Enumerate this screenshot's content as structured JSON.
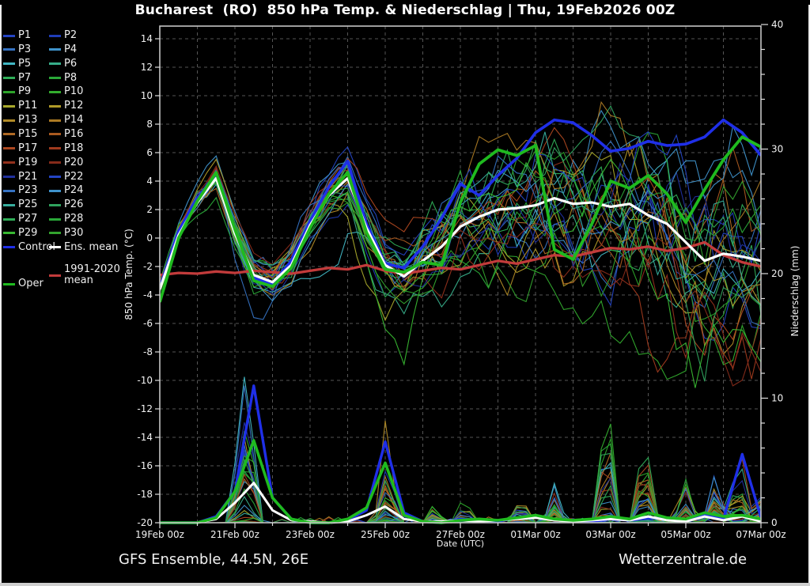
{
  "title": "Bucharest  (RO)  850 hPa Temp. & Niederschlag | Thu, 19Feb2026 00Z",
  "footer": {
    "left": "GFS Ensemble, 44.5N, 26E",
    "right": "Wetterzentrale.de"
  },
  "colors": {
    "background": "#000000",
    "frame": "#c4c4c4",
    "grid": "#555555",
    "tick_text": "#f2f2f2",
    "control": "#1f2fe8",
    "ens_mean": "#ffffff",
    "climate_mean": "#c23b3b",
    "oper": "#1fba1f"
  },
  "legend": {
    "control_label": "Control",
    "ens_mean_label": "Ens. mean",
    "climate_label_line1": "1991-2020",
    "climate_label_line2": "mean",
    "oper_label": "Oper"
  },
  "chart_data": {
    "type": "line",
    "title": "Bucharest (RO) 850 hPa Temp. & Niederschlag | Thu, 19Feb2026 00Z",
    "x_axis": {
      "label": "Date (UTC)",
      "tick_labels": [
        "19Feb 00z",
        "21Feb 00z",
        "23Feb 00z",
        "25Feb 00z",
        "27Feb 00z",
        "01Mar 00z",
        "03Mar 00z",
        "05Mar 00z",
        "07Mar 00z"
      ],
      "range_days": [
        0,
        16
      ],
      "gridline_every_days": 1,
      "labeled_tick_every_days": 2
    },
    "y_left": {
      "label": "850 hPa Temp. (°C)",
      "range": [
        -20,
        15
      ],
      "ticks": [
        14,
        12,
        10,
        8,
        6,
        4,
        2,
        0,
        -2,
        -4,
        -6,
        -8,
        -10,
        -12,
        -14,
        -16,
        -18,
        -20
      ]
    },
    "y_right": {
      "label": "Niederschlag (mm)",
      "range": [
        0,
        40
      ],
      "ticks": [
        40,
        30,
        20,
        10,
        0
      ]
    },
    "grid": true,
    "legend_position": "left",
    "sample_interval_hours": 12,
    "series": [
      {
        "name": "Control",
        "axis": "temp",
        "color": "#1f2fe8",
        "width": 3.6,
        "values": [
          -3.5,
          0.5,
          2.8,
          4.5,
          0.5,
          -2.8,
          -3.2,
          -1.6,
          1.2,
          3.6,
          5.4,
          1.0,
          -1.8,
          -2.1,
          -0.6,
          1.4,
          3.8,
          3.0,
          4.4,
          5.6,
          7.4,
          8.3,
          8.1,
          7.2,
          6.1,
          6.3,
          6.8,
          6.5,
          6.6,
          7.1,
          8.3,
          7.4,
          5.8
        ]
      },
      {
        "name": "Ens. mean",
        "axis": "temp",
        "color": "#ffffff",
        "width": 3.2,
        "values": [
          -3.6,
          0.2,
          2.5,
          4.2,
          0.3,
          -2.6,
          -3.1,
          -1.9,
          0.9,
          3.0,
          4.2,
          0.7,
          -1.9,
          -2.7,
          -1.6,
          -0.6,
          0.8,
          1.5,
          2.0,
          2.1,
          2.3,
          2.8,
          2.4,
          2.5,
          2.2,
          2.4,
          1.6,
          1.0,
          -0.3,
          -1.6,
          -1.1,
          -1.3,
          -1.6
        ]
      },
      {
        "name": "1991-2020 mean",
        "axis": "temp",
        "color": "#c23b3b",
        "width": 3.3,
        "values": [
          -2.6,
          -2.45,
          -2.5,
          -2.35,
          -2.45,
          -2.3,
          -2.4,
          -2.5,
          -2.3,
          -2.1,
          -2.2,
          -1.9,
          -2.3,
          -2.5,
          -2.3,
          -2.1,
          -2.2,
          -1.9,
          -1.6,
          -1.8,
          -1.5,
          -1.2,
          -1.3,
          -1.0,
          -0.7,
          -0.8,
          -0.6,
          -0.9,
          -0.7,
          -0.3,
          -1.2,
          -1.7,
          -2.0
        ]
      },
      {
        "name": "Oper",
        "axis": "temp",
        "color": "#1fba1f",
        "width": 3.8,
        "values": [
          -4.5,
          0.0,
          2.6,
          4.6,
          0.6,
          -3.0,
          -3.4,
          -2.1,
          0.7,
          3.1,
          4.6,
          0.4,
          -2.2,
          -2.4,
          -1.7,
          -1.9,
          2.5,
          5.2,
          6.2,
          5.8,
          6.5,
          -0.8,
          -1.5,
          1.0,
          4.0,
          3.5,
          4.4,
          3.1,
          1.1,
          3.4,
          5.5,
          7.1,
          6.4
        ]
      },
      {
        "name": "Control precip",
        "axis": "precip",
        "color": "#1f2fe8",
        "width": 3.4,
        "values": [
          0,
          0,
          0,
          0.5,
          2.5,
          11.0,
          2.0,
          0.3,
          0,
          0,
          0.2,
          1.0,
          6.5,
          0.8,
          0.1,
          0,
          0.3,
          0.2,
          0.1,
          0.4,
          0.5,
          0.3,
          0.2,
          0.1,
          0.3,
          0.2,
          0.4,
          0.3,
          0.2,
          0.6,
          0.3,
          5.5,
          0.4
        ]
      },
      {
        "name": "Ens. mean precip",
        "axis": "precip",
        "color": "#ffffff",
        "width": 3.0,
        "values": [
          0,
          0,
          0,
          0.3,
          1.6,
          3.2,
          1.0,
          0.2,
          0.1,
          0,
          0.1,
          0.6,
          1.3,
          0.3,
          0.1,
          0.1,
          0.2,
          0.1,
          0.2,
          0.3,
          0.4,
          0.2,
          0.1,
          0.2,
          0.3,
          0.2,
          0.5,
          0.2,
          0.1,
          0.5,
          0.2,
          0.5,
          0.1
        ]
      },
      {
        "name": "Oper precip",
        "axis": "precip",
        "color": "#1fba1f",
        "width": 3.6,
        "values": [
          0,
          0,
          0,
          0.4,
          2.5,
          6.6,
          2.0,
          0.3,
          0,
          0,
          0.3,
          1.2,
          4.8,
          0.6,
          0.1,
          0,
          0.2,
          0.3,
          0.2,
          0.4,
          0.6,
          0.3,
          0.2,
          0.3,
          0.5,
          0.3,
          0.8,
          0.4,
          0.3,
          0.8,
          0.5,
          0.6,
          0.3
        ]
      }
    ],
    "ensemble_members": {
      "count": 30,
      "labels": [
        "P1",
        "P2",
        "P3",
        "P4",
        "P5",
        "P6",
        "P7",
        "P8",
        "P9",
        "P10",
        "P11",
        "P12",
        "P13",
        "P14",
        "P15",
        "P16",
        "P17",
        "P18",
        "P19",
        "P20",
        "P21",
        "P22",
        "P23",
        "P24",
        "P25",
        "P26",
        "P27",
        "P28",
        "P29",
        "P30"
      ],
      "colors": [
        "#2444c4",
        "#1f3db8",
        "#3572c2",
        "#3f93cc",
        "#41b7c4",
        "#37ae8a",
        "#2fae57",
        "#2aa838",
        "#2da32a",
        "#33ad2e",
        "#a8a82b",
        "#b09a28",
        "#b08a26",
        "#ac7a24",
        "#b06a24",
        "#aa5a20",
        "#ac4720",
        "#a03a1e",
        "#92301c",
        "#862b1a",
        "#20309e",
        "#2444c4",
        "#3572c2",
        "#3f93cc",
        "#37ae9e",
        "#2fa35e",
        "#2fae57",
        "#2aa838",
        "#38b832",
        "#33a32e"
      ],
      "seed": 20260219,
      "temp_spread_per_12h": [
        0.5,
        0.7,
        0.9,
        1.0,
        1.1,
        1.1,
        1.2,
        1.3,
        1.4,
        1.5,
        1.7,
        1.9,
        2.2,
        2.5,
        2.8,
        3.1,
        3.4,
        3.7,
        4.0,
        4.2,
        4.5,
        4.7,
        4.9,
        5.1,
        5.3,
        5.5,
        5.7,
        5.9,
        6.1,
        6.3,
        6.5,
        6.7,
        7.0
      ],
      "cold_dips": [
        {
          "member": 4,
          "t": 4.6,
          "w": 0.8,
          "amp": 5
        },
        {
          "member": 10,
          "t": 5.6,
          "w": 0.9,
          "amp": 6
        },
        {
          "member": 22,
          "t": 2.6,
          "w": 0.7,
          "amp": 4
        },
        {
          "member": 28,
          "t": 6.3,
          "w": 0.8,
          "amp": 5
        }
      ],
      "precip_events": [
        {
          "t": 2.3,
          "w": 0.45,
          "max": 13
        },
        {
          "t": 6.05,
          "w": 0.35,
          "max": 8
        },
        {
          "t": 7.3,
          "w": 0.3,
          "max": 1.5
        },
        {
          "t": 8.1,
          "w": 0.3,
          "max": 2.5
        },
        {
          "t": 9.6,
          "w": 0.35,
          "max": 3
        },
        {
          "t": 10.5,
          "w": 0.3,
          "max": 3
        },
        {
          "t": 11.9,
          "w": 0.3,
          "max": 12
        },
        {
          "t": 12.9,
          "w": 0.4,
          "max": 6
        },
        {
          "t": 14.0,
          "w": 0.35,
          "max": 4
        },
        {
          "t": 14.8,
          "w": 0.35,
          "max": 4
        },
        {
          "t": 15.4,
          "w": 0.35,
          "max": 6
        },
        {
          "t": 15.9,
          "w": 0.25,
          "max": 3
        }
      ]
    }
  }
}
